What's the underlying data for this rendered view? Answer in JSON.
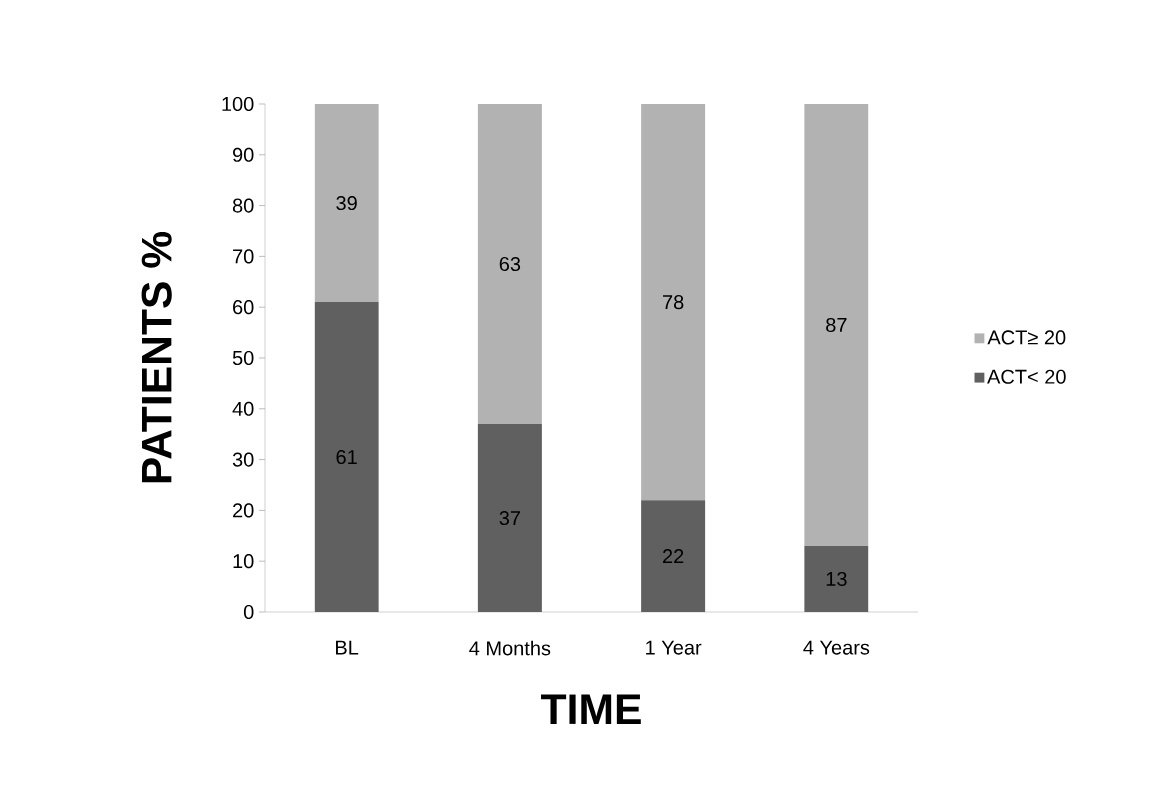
{
  "chart_data": {
    "type": "bar",
    "stacked": true,
    "xlabel": "TIME",
    "ylabel": "PATIENTS %",
    "categories": [
      "BL",
      "4 Months",
      "1 Year",
      "4 Years"
    ],
    "series": [
      {
        "name": "ACT< 20",
        "color": "#606060",
        "values": [
          61,
          37,
          22,
          13
        ]
      },
      {
        "name": "ACT≥ 20",
        "color": "#b2b2b2",
        "values": [
          39,
          63,
          78,
          87
        ]
      }
    ],
    "ylim": [
      0,
      100
    ],
    "yticks": [
      0,
      10,
      20,
      30,
      40,
      50,
      60,
      70,
      80,
      90,
      100
    ],
    "data_labels": true,
    "legend": "right"
  }
}
